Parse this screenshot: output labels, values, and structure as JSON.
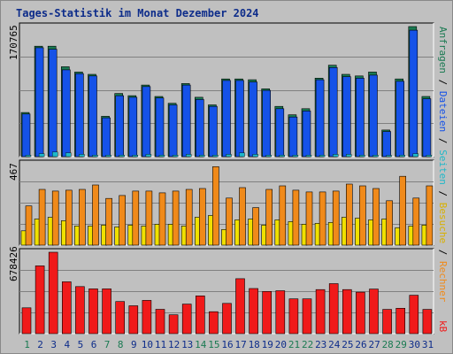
{
  "chart_title": "Tages-Statistik im Monat Dezember 2024",
  "colors": {
    "background": "#c0c0c0",
    "anfragen": "#1a7a52",
    "dateien": "#1552e8",
    "seiten": "#20b8c8",
    "besuche": "#f0e000",
    "rechner": "#f08a1a",
    "kb": "#f01a1a",
    "title": "#0d2c8a",
    "weekend_label": "#1a7a52",
    "weekday_label": "#0d2c8a"
  },
  "right_labels": {
    "top": [
      {
        "text": "Anfragen",
        "color": "#1a7a52"
      },
      {
        "text": " / ",
        "color": "#000000"
      },
      {
        "text": "Dateien",
        "color": "#1552e8"
      },
      {
        "text": " / ",
        "color": "#000000"
      },
      {
        "text": "Seiten",
        "color": "#20b8c8"
      },
      {
        "text": " / ",
        "color": "#000000"
      },
      {
        "text": "Besuche",
        "color": "#d8b000"
      },
      {
        "text": " / ",
        "color": "#000000"
      },
      {
        "text": "Rechner",
        "color": "#f08a1a"
      }
    ],
    "bottom": "kB"
  },
  "chart_data": [
    {
      "type": "bar",
      "panel": "top",
      "ymax_label": "170765",
      "ylim": [
        0,
        170765
      ],
      "categories": [
        "1",
        "2",
        "3",
        "4",
        "5",
        "6",
        "7",
        "8",
        "9",
        "10",
        "11",
        "12",
        "13",
        "14",
        "15",
        "16",
        "17",
        "18",
        "19",
        "20",
        "21",
        "22",
        "23",
        "24",
        "25",
        "26",
        "27",
        "28",
        "29",
        "30",
        "31"
      ],
      "weekend_days": [
        "1",
        "7",
        "8",
        "14",
        "15",
        "21",
        "22",
        "28",
        "29"
      ],
      "series": [
        {
          "name": "Anfragen",
          "values": [
            58000,
            145000,
            145000,
            118000,
            111000,
            108000,
            53000,
            83000,
            80000,
            94000,
            79000,
            70000,
            96000,
            78000,
            68000,
            102000,
            102000,
            101000,
            89000,
            66000,
            55000,
            63000,
            103000,
            120000,
            108000,
            106000,
            111000,
            35000,
            102000,
            170765,
            79000
          ]
        },
        {
          "name": "Dateien",
          "values": [
            56000,
            143000,
            141000,
            114000,
            109000,
            106000,
            51000,
            80000,
            78000,
            92000,
            77000,
            68000,
            94000,
            75000,
            66000,
            100000,
            100000,
            98000,
            87000,
            63000,
            52000,
            60000,
            101000,
            117000,
            105000,
            103000,
            107000,
            33000,
            99000,
            166000,
            76000
          ]
        },
        {
          "name": "Seiten",
          "values": [
            2000,
            4000,
            6000,
            5000,
            3000,
            2000,
            2000,
            2000,
            2000,
            3000,
            2000,
            2000,
            3000,
            2000,
            2000,
            3000,
            5000,
            3000,
            2000,
            2000,
            2000,
            2000,
            2000,
            3000,
            3000,
            2000,
            2000,
            1000,
            2000,
            4000,
            2000
          ]
        }
      ]
    },
    {
      "type": "bar",
      "panel": "middle",
      "ymax_label": "467",
      "ylim": [
        0,
        467
      ],
      "series": [
        {
          "name": "Besuche",
          "values": [
            82,
            150,
            160,
            140,
            110,
            110,
            115,
            105,
            115,
            110,
            120,
            120,
            110,
            160,
            170,
            90,
            145,
            150,
            115,
            145,
            135,
            120,
            125,
            130,
            160,
            155,
            145,
            150,
            100,
            110,
            115
          ]
        },
        {
          "name": "Rechner",
          "values": [
            225,
            320,
            310,
            315,
            320,
            345,
            268,
            285,
            310,
            310,
            300,
            310,
            320,
            325,
            450,
            270,
            330,
            215,
            320,
            340,
            315,
            305,
            305,
            310,
            350,
            340,
            325,
            255,
            395,
            270,
            340
          ]
        }
      ]
    },
    {
      "type": "bar",
      "panel": "bottom",
      "ymax_label": "678426",
      "ylim": [
        0,
        678426
      ],
      "series": [
        {
          "name": "kB",
          "values": [
            215000,
            565000,
            678426,
            432000,
            392000,
            373000,
            373000,
            268000,
            232000,
            277000,
            203000,
            157000,
            246000,
            315000,
            183000,
            252000,
            458000,
            376000,
            352000,
            358000,
            290000,
            290000,
            367000,
            417000,
            367000,
            346000,
            372000,
            202000,
            212000,
            320000,
            202000
          ]
        }
      ]
    }
  ]
}
